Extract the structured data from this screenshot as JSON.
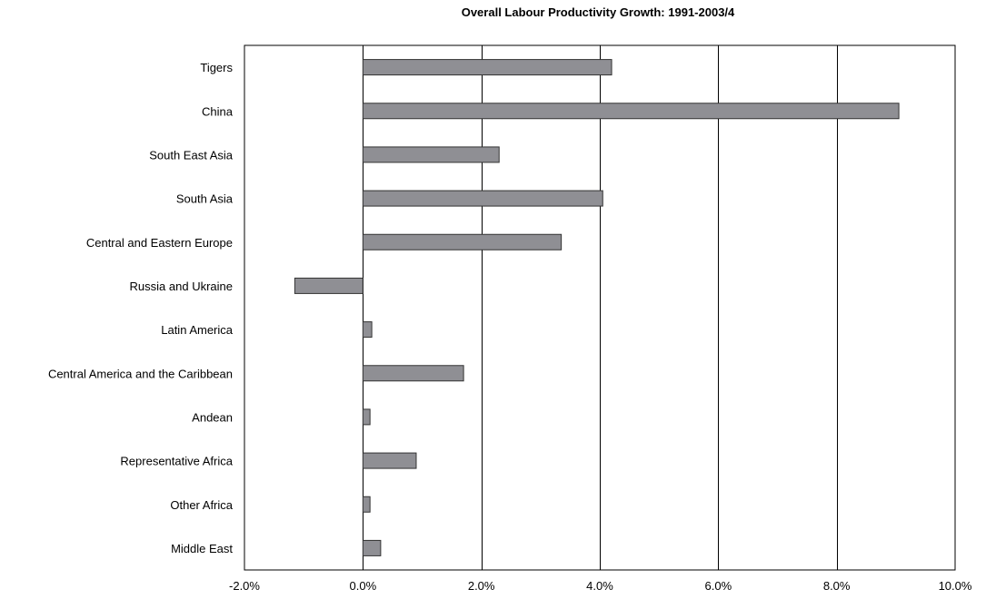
{
  "chart_data": {
    "type": "bar",
    "orientation": "horizontal",
    "title": "Overall Labour Productivity Growth: 1991-2003/4",
    "categories": [
      "Tigers",
      "China",
      "South East Asia",
      "South Asia",
      "Central and Eastern Europe",
      "Russia and Ukraine",
      "Latin America",
      "Central America and the Caribbean",
      "Andean",
      "Representative Africa",
      "Other Africa",
      "Middle East"
    ],
    "values": [
      4.2,
      9.05,
      2.3,
      4.05,
      3.35,
      -1.15,
      0.15,
      1.7,
      0.12,
      0.9,
      0.12,
      0.3
    ],
    "value_unit": "%",
    "xlim": [
      -2,
      10
    ],
    "xticks": [
      -2,
      0,
      2,
      4,
      6,
      8,
      10
    ],
    "xtick_labels": [
      "-2.0%",
      "0.0%",
      "2.0%",
      "4.0%",
      "6.0%",
      "8.0%",
      "10.0%"
    ],
    "grid": "vertical",
    "legend": "none",
    "bar_color": "#8f8f94",
    "bar_edge_color": "#333333"
  }
}
